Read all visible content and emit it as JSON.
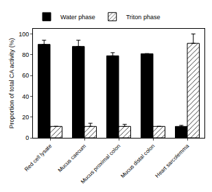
{
  "chart_data": {
    "type": "bar",
    "y_label": "Proportion of total CA activity (%)",
    "categories": [
      "Red cell lysate",
      "Mucus caecum",
      "Mucus proximal colon",
      "Mucus distal colon",
      "Heart sarcolemma"
    ],
    "series": [
      {
        "name": "Water phase",
        "color": "#000000",
        "marker": "solid",
        "values": [
          90,
          88,
          79,
          81,
          11
        ],
        "errors": [
          4,
          6,
          3,
          0,
          1
        ]
      },
      {
        "name": "Triton phase",
        "color": "#ffffff",
        "marker": "hatched",
        "values": [
          11,
          11,
          11,
          11,
          91
        ],
        "errors": [
          0,
          3,
          2,
          0,
          9
        ]
      }
    ],
    "ylim": [
      0,
      105
    ],
    "yticks": [
      0,
      20,
      40,
      60,
      80,
      100
    ],
    "grid": false,
    "legend": "top left"
  }
}
